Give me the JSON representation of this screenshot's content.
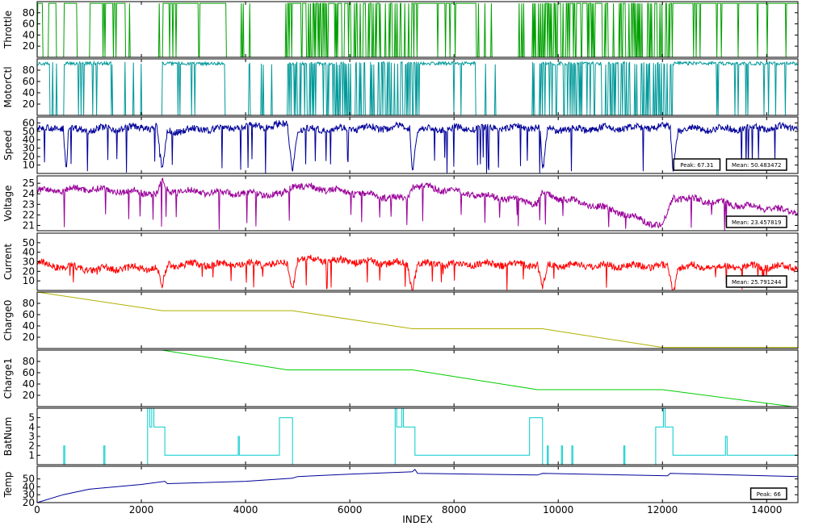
{
  "chart_data": {
    "type": "line",
    "xlabel": "INDEX",
    "xlim": [
      0,
      14600
    ],
    "xticks": [
      0,
      2000,
      4000,
      6000,
      8000,
      10000,
      12000,
      14000
    ],
    "panels": [
      {
        "ylabel": "Throttle",
        "color": "#00a000",
        "ylim": [
          0,
          100
        ],
        "yticks": [
          20,
          40,
          60,
          80
        ],
        "style": "binary",
        "high": 97,
        "low": 0,
        "notes": [],
        "series": [
          {
            "x": 0,
            "y": 97
          },
          {
            "x": 200,
            "y": 0
          },
          {
            "x": 230,
            "y": 97
          },
          {
            "x": 500,
            "y": 0
          },
          {
            "x": 520,
            "y": 97
          },
          {
            "x": 1000,
            "y": 0
          },
          {
            "x": 1020,
            "y": 97
          },
          {
            "x": 2380,
            "y": 0
          },
          {
            "x": 2450,
            "y": 97
          },
          {
            "x": 4800,
            "y": 0
          },
          {
            "x": 4950,
            "y": 97
          },
          {
            "x": 7100,
            "y": 0
          },
          {
            "x": 7250,
            "y": 97
          },
          {
            "x": 9600,
            "y": 0
          },
          {
            "x": 9700,
            "y": 97
          },
          {
            "x": 12100,
            "y": 0
          },
          {
            "x": 12200,
            "y": 97
          },
          {
            "x": 14600,
            "y": 97
          }
        ]
      },
      {
        "ylabel": "MotorCtl",
        "color": "#009999",
        "ylim": [
          0,
          100
        ],
        "yticks": [
          20,
          40,
          60,
          80
        ],
        "style": "binary",
        "high": 95,
        "low": 0,
        "notes": [],
        "series": [
          {
            "x": 0,
            "y": 95
          },
          {
            "x": 500,
            "y": 0
          },
          {
            "x": 520,
            "y": 95
          },
          {
            "x": 2380,
            "y": 0
          },
          {
            "x": 2450,
            "y": 93
          },
          {
            "x": 4800,
            "y": 0
          },
          {
            "x": 4950,
            "y": 92
          },
          {
            "x": 7100,
            "y": 0
          },
          {
            "x": 7250,
            "y": 93
          },
          {
            "x": 9600,
            "y": 0
          },
          {
            "x": 9700,
            "y": 93
          },
          {
            "x": 12100,
            "y": 0
          },
          {
            "x": 12200,
            "y": 94
          },
          {
            "x": 14600,
            "y": 94
          }
        ]
      },
      {
        "ylabel": "Speed",
        "color": "#000099",
        "ylim": [
          0,
          67
        ],
        "yticks": [
          10,
          20,
          30,
          40,
          50,
          60
        ],
        "style": "noisy",
        "notes": [
          "Peak: 67.31",
          "Mean: 50.483472"
        ],
        "series": [
          {
            "x": 0,
            "y": 52
          },
          {
            "x": 500,
            "y": 55
          },
          {
            "x": 560,
            "y": 2
          },
          {
            "x": 600,
            "y": 52
          },
          {
            "x": 2300,
            "y": 55
          },
          {
            "x": 2400,
            "y": 2
          },
          {
            "x": 2500,
            "y": 50
          },
          {
            "x": 4800,
            "y": 58
          },
          {
            "x": 4900,
            "y": 2
          },
          {
            "x": 5000,
            "y": 52
          },
          {
            "x": 7150,
            "y": 55
          },
          {
            "x": 7200,
            "y": 2
          },
          {
            "x": 7300,
            "y": 52
          },
          {
            "x": 9650,
            "y": 55
          },
          {
            "x": 9700,
            "y": 2
          },
          {
            "x": 9800,
            "y": 52
          },
          {
            "x": 12150,
            "y": 55
          },
          {
            "x": 12200,
            "y": 2
          },
          {
            "x": 12300,
            "y": 52
          },
          {
            "x": 14600,
            "y": 55
          }
        ]
      },
      {
        "ylabel": "Voltage",
        "color": "#990099",
        "ylim": [
          20.5,
          25.7
        ],
        "yticks": [
          21,
          22,
          23,
          24,
          25
        ],
        "style": "noisy",
        "notes": [
          "Mean: 23.457819"
        ],
        "series": [
          {
            "x": 0,
            "y": 24.3
          },
          {
            "x": 1000,
            "y": 24.5
          },
          {
            "x": 2300,
            "y": 24.0
          },
          {
            "x": 2400,
            "y": 25.3
          },
          {
            "x": 2500,
            "y": 24.3
          },
          {
            "x": 4700,
            "y": 23.9
          },
          {
            "x": 4900,
            "y": 24.8
          },
          {
            "x": 7100,
            "y": 23.5
          },
          {
            "x": 7200,
            "y": 24.8
          },
          {
            "x": 9600,
            "y": 23.1
          },
          {
            "x": 9700,
            "y": 24.0
          },
          {
            "x": 11000,
            "y": 22.5
          },
          {
            "x": 12000,
            "y": 20.9
          },
          {
            "x": 12200,
            "y": 23.7
          },
          {
            "x": 14600,
            "y": 22.3
          }
        ]
      },
      {
        "ylabel": "Current",
        "color": "#ff0000",
        "ylim": [
          0,
          60
        ],
        "yticks": [
          10,
          20,
          30,
          40,
          50
        ],
        "style": "noisy",
        "notes": [
          "Mean: 25.791244"
        ],
        "series": [
          {
            "x": 0,
            "y": 28
          },
          {
            "x": 1000,
            "y": 22
          },
          {
            "x": 2300,
            "y": 24
          },
          {
            "x": 2400,
            "y": 1
          },
          {
            "x": 2500,
            "y": 27
          },
          {
            "x": 4800,
            "y": 28
          },
          {
            "x": 4900,
            "y": 1
          },
          {
            "x": 5000,
            "y": 33
          },
          {
            "x": 7100,
            "y": 28
          },
          {
            "x": 7200,
            "y": 1
          },
          {
            "x": 7300,
            "y": 28
          },
          {
            "x": 9600,
            "y": 27
          },
          {
            "x": 9700,
            "y": 1
          },
          {
            "x": 9800,
            "y": 27
          },
          {
            "x": 12100,
            "y": 25
          },
          {
            "x": 12200,
            "y": 1
          },
          {
            "x": 12300,
            "y": 25
          },
          {
            "x": 14600,
            "y": 25
          }
        ]
      },
      {
        "ylabel": "Charge0",
        "color": "#b0b000",
        "ylim": [
          0,
          100
        ],
        "yticks": [
          20,
          40,
          60,
          80
        ],
        "style": "line",
        "notes": [],
        "series": [
          {
            "x": 0,
            "y": 100
          },
          {
            "x": 2400,
            "y": 67
          },
          {
            "x": 4900,
            "y": 67
          },
          {
            "x": 7200,
            "y": 35
          },
          {
            "x": 9700,
            "y": 35
          },
          {
            "x": 12000,
            "y": 2
          },
          {
            "x": 14600,
            "y": 2
          }
        ]
      },
      {
        "ylabel": "Charge1",
        "color": "#00cc00",
        "ylim": [
          0,
          100
        ],
        "yticks": [
          20,
          40,
          60,
          80
        ],
        "style": "line",
        "notes": [],
        "series": [
          {
            "x": 0,
            "y": 100
          },
          {
            "x": 2400,
            "y": 100
          },
          {
            "x": 4800,
            "y": 65
          },
          {
            "x": 7200,
            "y": 65
          },
          {
            "x": 9600,
            "y": 30
          },
          {
            "x": 12000,
            "y": 30
          },
          {
            "x": 14500,
            "y": 0
          },
          {
            "x": 14600,
            "y": 0
          }
        ]
      },
      {
        "ylabel": "BatNum",
        "color": "#00cccc",
        "ylim": [
          0,
          6
        ],
        "yticks": [
          1,
          2,
          3,
          4,
          5
        ],
        "style": "step",
        "notes": [],
        "series": [
          {
            "x": 0,
            "y": 0
          },
          {
            "x": 500,
            "y": 0
          },
          {
            "x": 510,
            "y": 2
          },
          {
            "x": 530,
            "y": 0
          },
          {
            "x": 1270,
            "y": 0
          },
          {
            "x": 1280,
            "y": 2
          },
          {
            "x": 1300,
            "y": 0
          },
          {
            "x": 2100,
            "y": 0
          },
          {
            "x": 2120,
            "y": 6
          },
          {
            "x": 2160,
            "y": 4
          },
          {
            "x": 2200,
            "y": 6
          },
          {
            "x": 2240,
            "y": 4
          },
          {
            "x": 2400,
            "y": 4
          },
          {
            "x": 2450,
            "y": 1
          },
          {
            "x": 3850,
            "y": 1
          },
          {
            "x": 3860,
            "y": 3
          },
          {
            "x": 3880,
            "y": 1
          },
          {
            "x": 4600,
            "y": 1
          },
          {
            "x": 4650,
            "y": 5
          },
          {
            "x": 4850,
            "y": 5
          },
          {
            "x": 4900,
            "y": 0
          },
          {
            "x": 6850,
            "y": 0
          },
          {
            "x": 6870,
            "y": 6
          },
          {
            "x": 6900,
            "y": 4
          },
          {
            "x": 7000,
            "y": 6
          },
          {
            "x": 7030,
            "y": 4
          },
          {
            "x": 7200,
            "y": 4
          },
          {
            "x": 7250,
            "y": 1
          },
          {
            "x": 9400,
            "y": 1
          },
          {
            "x": 9450,
            "y": 5
          },
          {
            "x": 9650,
            "y": 5
          },
          {
            "x": 9700,
            "y": 0
          },
          {
            "x": 9780,
            "y": 0
          },
          {
            "x": 9790,
            "y": 2
          },
          {
            "x": 9810,
            "y": 0
          },
          {
            "x": 10050,
            "y": 0
          },
          {
            "x": 10060,
            "y": 2
          },
          {
            "x": 10080,
            "y": 0
          },
          {
            "x": 10250,
            "y": 0
          },
          {
            "x": 10260,
            "y": 2
          },
          {
            "x": 10280,
            "y": 0
          },
          {
            "x": 11250,
            "y": 0
          },
          {
            "x": 11260,
            "y": 2
          },
          {
            "x": 11280,
            "y": 0
          },
          {
            "x": 11850,
            "y": 0
          },
          {
            "x": 11870,
            "y": 4
          },
          {
            "x": 12000,
            "y": 4
          },
          {
            "x": 12020,
            "y": 6
          },
          {
            "x": 12050,
            "y": 4
          },
          {
            "x": 12150,
            "y": 4
          },
          {
            "x": 12200,
            "y": 1
          },
          {
            "x": 13200,
            "y": 1
          },
          {
            "x": 13210,
            "y": 3
          },
          {
            "x": 13240,
            "y": 1
          },
          {
            "x": 14600,
            "y": 1
          }
        ]
      },
      {
        "ylabel": "Temp",
        "color": "#000099",
        "ylim": [
          20,
          66
        ],
        "yticks": [
          20,
          30,
          40,
          50
        ],
        "style": "line",
        "notes": [
          "Peak: 66"
        ],
        "series": [
          {
            "x": 0,
            "y": 20
          },
          {
            "x": 500,
            "y": 30
          },
          {
            "x": 1000,
            "y": 37
          },
          {
            "x": 2000,
            "y": 43
          },
          {
            "x": 2450,
            "y": 47
          },
          {
            "x": 2500,
            "y": 44
          },
          {
            "x": 4000,
            "y": 47
          },
          {
            "x": 4900,
            "y": 51
          },
          {
            "x": 5000,
            "y": 53
          },
          {
            "x": 6000,
            "y": 56
          },
          {
            "x": 7200,
            "y": 59
          },
          {
            "x": 7250,
            "y": 62
          },
          {
            "x": 7300,
            "y": 57
          },
          {
            "x": 9600,
            "y": 55
          },
          {
            "x": 9700,
            "y": 57
          },
          {
            "x": 12100,
            "y": 54
          },
          {
            "x": 12150,
            "y": 57
          },
          {
            "x": 14600,
            "y": 53
          }
        ]
      }
    ]
  }
}
